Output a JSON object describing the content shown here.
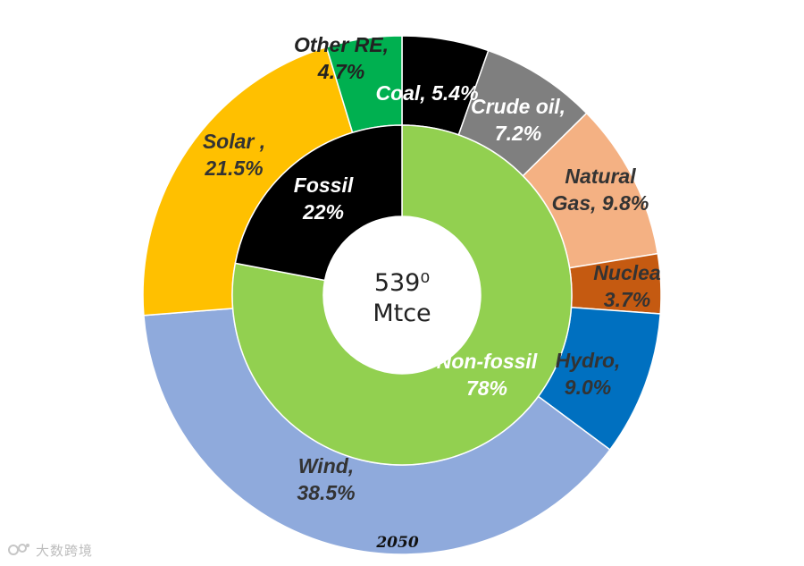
{
  "chart_data": {
    "type": "pie",
    "subtype": "nested-donut",
    "center_label": [
      "539⁰",
      "Mtce"
    ],
    "caption": "2050",
    "outer_ring": [
      {
        "name": "Coal",
        "value": 5.4,
        "label": [
          "Coal, 5.4%"
        ],
        "color": "#000000",
        "text_color": "#ffffff"
      },
      {
        "name": "Crude oil",
        "value": 7.2,
        "label": [
          "Crude oil,",
          "7.2%"
        ],
        "color": "#7f7f7f",
        "text_color": "#ffffff"
      },
      {
        "name": "Natural Gas",
        "value": 9.8,
        "label": [
          "Natural",
          "Gas, 9.8%"
        ],
        "color": "#f4b183",
        "text_color": "#333333"
      },
      {
        "name": "Nuclea",
        "value": 3.7,
        "label": [
          "Nuclea",
          "3.7%"
        ],
        "color": "#c55a11",
        "text_color": "#333333"
      },
      {
        "name": "Hydro",
        "value": 9.0,
        "label": [
          "Hydro,",
          "9.0%"
        ],
        "color": "#0070c0",
        "text_color": "#333333"
      },
      {
        "name": "Wind",
        "value": 38.5,
        "label": [
          "Wind,",
          "38.5%"
        ],
        "color": "#8faadc",
        "text_color": "#333333"
      },
      {
        "name": "Solar",
        "value": 21.5,
        "label": [
          "Solar ,",
          "21.5%"
        ],
        "color": "#ffc000",
        "text_color": "#333333"
      },
      {
        "name": "Other RE",
        "value": 4.7,
        "label": [
          "Other RE,",
          "4.7%"
        ],
        "color": "#00b050",
        "text_color": "#222222"
      }
    ],
    "inner_ring": [
      {
        "name": "Non-fossil",
        "value": 78,
        "label": [
          "Non-fossil",
          "78%"
        ],
        "color": "#92d050",
        "text_color": "#ffffff"
      },
      {
        "name": "Fossil",
        "value": 22,
        "label": [
          "Fossil",
          "22%"
        ],
        "color": "#000000",
        "text_color": "#ffffff"
      }
    ]
  },
  "watermark": {
    "text": "大数跨境",
    "icon": "watermark-logo-icon"
  }
}
